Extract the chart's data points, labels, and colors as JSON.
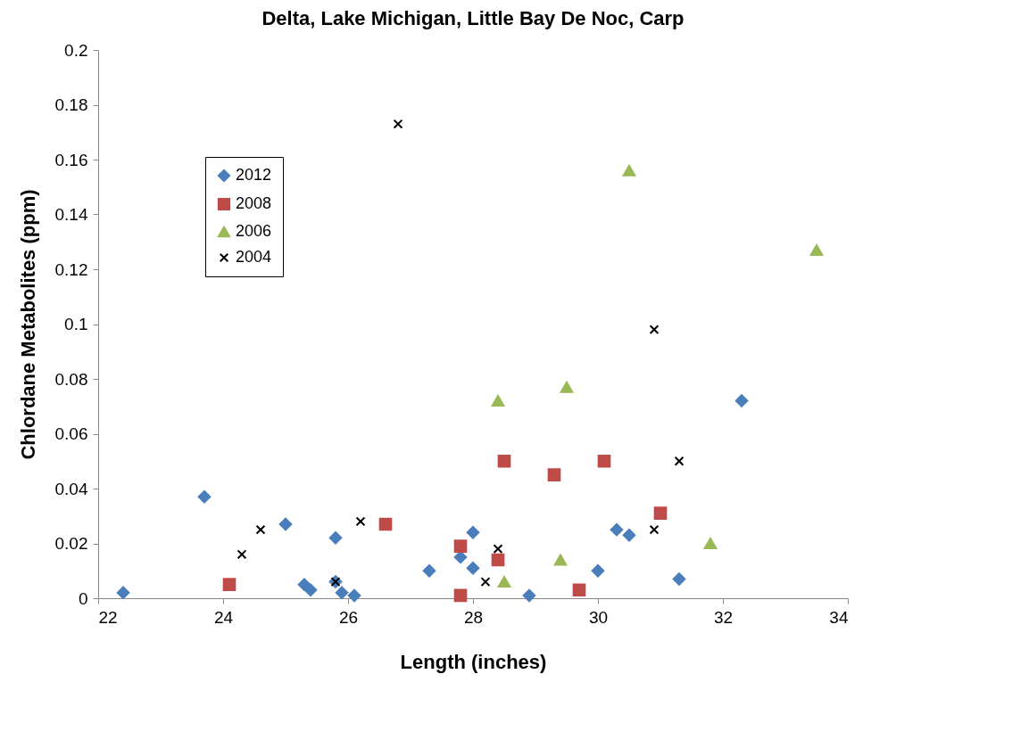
{
  "chart_data": {
    "type": "scatter",
    "title": "Delta, Lake Michigan, Little Bay De Noc, Carp",
    "xlabel": "Length (inches)",
    "ylabel": "Chlordane Metabolites  (ppm)",
    "xlim": [
      22,
      34
    ],
    "xticks": [
      22,
      24,
      26,
      28,
      30,
      32,
      34
    ],
    "ylim": [
      0,
      0.2
    ],
    "yticks": [
      0,
      0.02,
      0.04,
      0.06,
      0.08,
      0.1,
      0.12,
      0.14,
      0.16,
      0.18,
      0.2
    ],
    "grid": false,
    "legend": "top left",
    "series": [
      {
        "name": "2012",
        "color": "#4a7ebb",
        "marker": "diamond",
        "x": [
          22.4,
          23.7,
          25.0,
          25.8,
          25.3,
          25.4,
          25.8,
          25.9,
          26.1,
          27.3,
          27.8,
          28.0,
          28.0,
          28.9,
          30.0,
          30.3,
          30.5,
          31.3,
          32.3
        ],
        "values": [
          0.002,
          0.037,
          0.027,
          0.022,
          0.005,
          0.003,
          0.006,
          0.002,
          0.001,
          0.01,
          0.015,
          0.024,
          0.011,
          0.001,
          0.01,
          0.025,
          0.023,
          0.007,
          0.072
        ]
      },
      {
        "name": "2008",
        "color": "#be4b48",
        "marker": "square",
        "x": [
          24.1,
          26.6,
          27.8,
          27.8,
          28.4,
          28.5,
          29.3,
          29.7,
          30.1,
          31.0
        ],
        "values": [
          0.005,
          0.027,
          0.019,
          0.001,
          0.014,
          0.05,
          0.045,
          0.003,
          0.05,
          0.031
        ]
      },
      {
        "name": "2006",
        "color": "#98b954",
        "marker": "triangle",
        "x": [
          28.4,
          28.5,
          29.4,
          29.5,
          30.5,
          31.8,
          33.5
        ],
        "values": [
          0.072,
          0.006,
          0.014,
          0.077,
          0.156,
          0.02,
          0.127
        ]
      },
      {
        "name": "2004",
        "color": "#000000",
        "marker": "cross",
        "x": [
          24.3,
          24.6,
          25.8,
          26.2,
          26.8,
          28.2,
          28.4,
          30.9,
          30.9,
          31.3
        ],
        "values": [
          0.016,
          0.025,
          0.006,
          0.028,
          0.173,
          0.006,
          0.018,
          0.098,
          0.025,
          0.05
        ]
      }
    ]
  }
}
